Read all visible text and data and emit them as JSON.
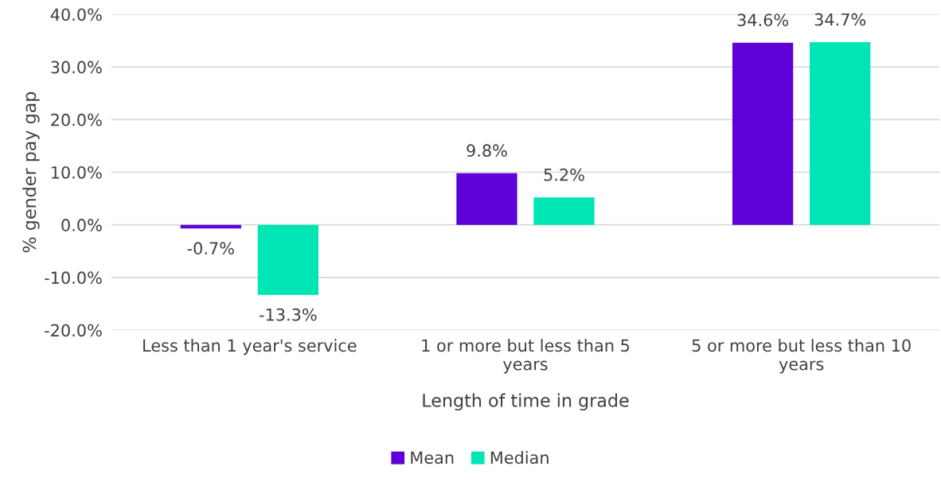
{
  "chart_data": {
    "type": "bar",
    "xlabel": "Length of time in grade",
    "ylabel": "% gender pay gap",
    "categories": [
      "Less than 1 year's service",
      "1 or more but less than 5 years",
      "5 or more but less than 10 years"
    ],
    "series": [
      {
        "name": "Mean",
        "color": "#5f00d8",
        "values": [
          -0.7,
          9.8,
          34.6
        ],
        "value_labels": [
          "-0.7%",
          "9.8%",
          "34.6%"
        ]
      },
      {
        "name": "Median",
        "color": "#00e5b4",
        "values": [
          -13.3,
          5.2,
          34.7
        ],
        "value_labels": [
          "-13.3%",
          "5.2%",
          "34.7%"
        ]
      }
    ],
    "ylim": [
      -20,
      40
    ],
    "yticks": [
      {
        "value": -20,
        "label": "-20.0%"
      },
      {
        "value": -10,
        "label": "-10.0%"
      },
      {
        "value": 0,
        "label": "0.0%"
      },
      {
        "value": 10,
        "label": "10.0%"
      },
      {
        "value": 20,
        "label": "20.0%"
      },
      {
        "value": 30,
        "label": "30.0%"
      },
      {
        "value": 40,
        "label": "40.0%"
      }
    ],
    "grid": "y",
    "legend": "bottom"
  }
}
